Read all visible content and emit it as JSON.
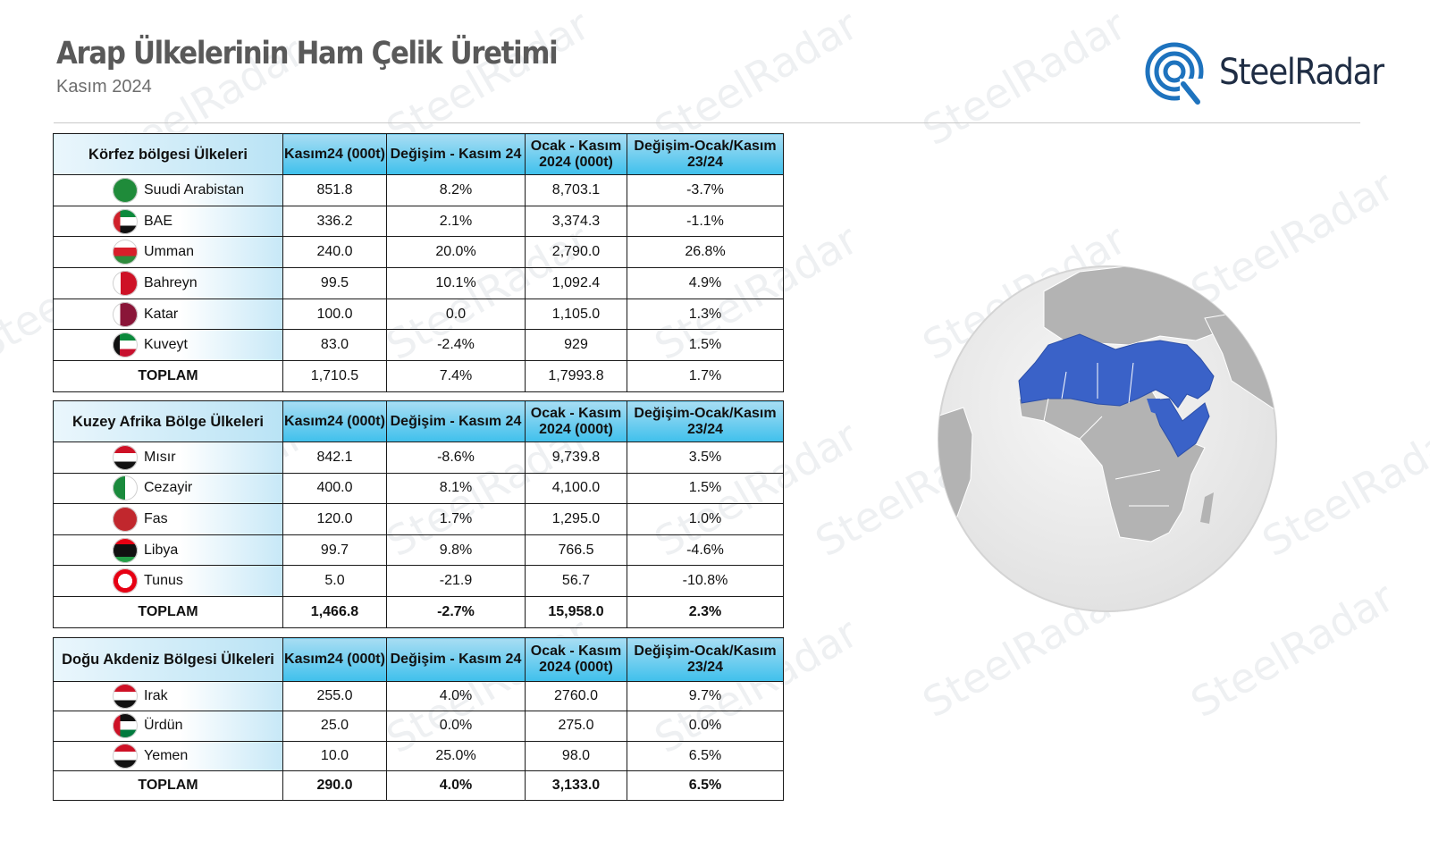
{
  "header": {
    "title": "Arap Ülkelerinin Ham Çelik Üretimi",
    "subtitle": "Kasım 2024",
    "logo": "SteelRadar"
  },
  "watermark": "SteelRadar",
  "columns": [
    "Kasım24 (000t)",
    "Değişim - Kasım 24",
    "Ocak - Kasım 2024 (000t)",
    "Değişim-Ocak/Kasım 23/24"
  ],
  "tables": [
    {
      "region": "Körfez bölgesi Ülkeleri",
      "rows": [
        {
          "country": "Suudi Arabistan",
          "flag": "saudi-arabia-flag",
          "v1": "851.8",
          "v2": "8.2%",
          "v3": "8,703.1",
          "v4": "-3.7%"
        },
        {
          "country": "BAE",
          "flag": "uae-flag",
          "v1": "336.2",
          "v2": "2.1%",
          "v3": "3,374.3",
          "v4": "-1.1%"
        },
        {
          "country": "Umman",
          "flag": "oman-flag",
          "v1": "240.0",
          "v2": "20.0%",
          "v3": "2,790.0",
          "v4": "26.8%"
        },
        {
          "country": "Bahreyn",
          "flag": "bahrain-flag",
          "v1": "99.5",
          "v2": "10.1%",
          "v3": "1,092.4",
          "v4": "4.9%"
        },
        {
          "country": "Katar",
          "flag": "qatar-flag",
          "v1": "100.0",
          "v2": "0.0",
          "v3": "1,105.0",
          "v4": "1.3%"
        },
        {
          "country": "Kuveyt",
          "flag": "kuwait-flag",
          "v1": "83.0",
          "v2": "-2.4%",
          "v3": "929",
          "v4": "1.5%"
        }
      ],
      "total": {
        "label": "TOPLAM",
        "v1": "1,710.5",
        "v2": "7.4%",
        "v3": "1,7993.8",
        "v4": "1.7%"
      }
    },
    {
      "region": "Kuzey Afrika Bölge Ülkeleri",
      "rows": [
        {
          "country": "Mısır",
          "flag": "egypt-flag",
          "v1": "842.1",
          "v2": "-8.6%",
          "v3": "9,739.8",
          "v4": "3.5%"
        },
        {
          "country": "Cezayir",
          "flag": "algeria-flag",
          "v1": "400.0",
          "v2": "8.1%",
          "v3": "4,100.0",
          "v4": "1.5%"
        },
        {
          "country": "Fas",
          "flag": "morocco-flag",
          "v1": "120.0",
          "v2": "1.7%",
          "v3": "1,295.0",
          "v4": "1.0%"
        },
        {
          "country": "Libya",
          "flag": "libya-flag",
          "v1": "99.7",
          "v2": "9.8%",
          "v3": "766.5",
          "v4": "-4.6%"
        },
        {
          "country": "Tunus",
          "flag": "tunisia-flag",
          "v1": "5.0",
          "v2": "-21.9",
          "v3": "56.7",
          "v4": "-10.8%"
        }
      ],
      "total": {
        "label": "TOPLAM",
        "v1": "1,466.8",
        "v2": "-2.7%",
        "v3": "15,958.0",
        "v4": "2.3%"
      }
    },
    {
      "region": "Doğu Akdeniz Bölgesi Ülkeleri",
      "rows": [
        {
          "country": "Irak",
          "flag": "iraq-flag",
          "v1": "255.0",
          "v2": "4.0%",
          "v3": "2760.0",
          "v4": "9.7%"
        },
        {
          "country": "Ürdün",
          "flag": "jordan-flag",
          "v1": "25.0",
          "v2": "0.0%",
          "v3": "275.0",
          "v4": "0.0%"
        },
        {
          "country": "Yemen",
          "flag": "yemen-flag",
          "v1": "10.0",
          "v2": "25.0%",
          "v3": "98.0",
          "v4": "6.5%"
        }
      ],
      "total": {
        "label": "TOPLAM",
        "v1": "290.0",
        "v2": "4.0%",
        "v3": "3,133.0",
        "v4": "6.5%"
      }
    }
  ],
  "colors": {
    "header_blue": "#3fc0ec",
    "region_highlight": "#3a62c8",
    "land_gray": "#b3b3b3",
    "globe_bg": "#ececec"
  }
}
